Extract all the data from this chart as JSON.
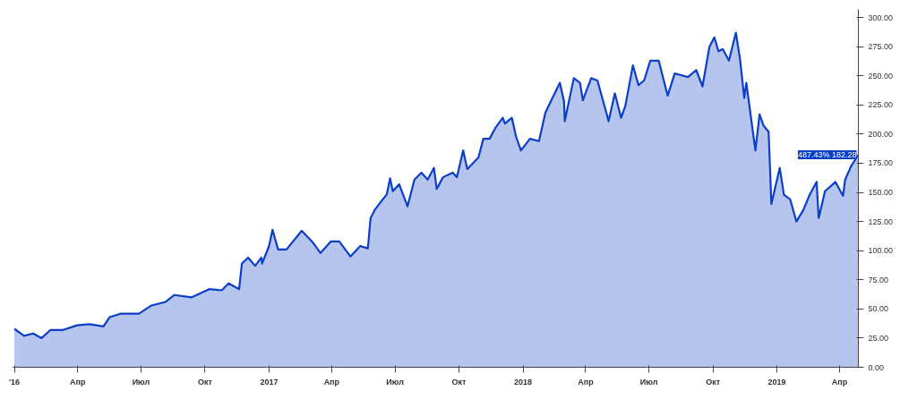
{
  "chart_data": {
    "type": "area",
    "x": [
      "2016-01-01",
      "2016-01-15",
      "2016-01-28",
      "2016-02-09",
      "2016-02-22",
      "2016-03-11",
      "2016-03-31",
      "2016-04-18",
      "2016-05-08",
      "2016-05-17",
      "2016-06-02",
      "2016-06-28",
      "2016-07-16",
      "2016-08-05",
      "2016-08-18",
      "2016-09-12",
      "2016-10-07",
      "2016-10-25",
      "2016-11-04",
      "2016-11-19",
      "2016-11-23",
      "2016-12-02",
      "2016-12-12",
      "2016-12-21",
      "2016-12-22",
      "2017-01-01",
      "2017-01-06",
      "2017-01-14",
      "2017-01-26",
      "2017-02-17",
      "2017-03-05",
      "2017-03-16",
      "2017-03-31",
      "2017-04-12",
      "2017-04-28",
      "2017-05-12",
      "2017-05-23",
      "2017-05-27",
      "2017-06-02",
      "2017-06-12",
      "2017-06-19",
      "2017-06-24",
      "2017-06-28",
      "2017-07-07",
      "2017-07-19",
      "2017-07-29",
      "2017-08-08",
      "2017-08-17",
      "2017-08-26",
      "2017-08-30",
      "2017-09-08",
      "2017-09-22",
      "2017-09-28",
      "2017-10-07",
      "2017-10-13",
      "2017-10-29",
      "2017-11-05",
      "2017-11-14",
      "2017-11-23",
      "2017-12-03",
      "2017-12-06",
      "2017-12-16",
      "2017-12-22",
      "2017-12-29",
      "2018-01-11",
      "2018-01-24",
      "2018-02-02",
      "2018-02-05",
      "2018-02-23",
      "2018-03-01",
      "2018-03-02",
      "2018-03-15",
      "2018-03-24",
      "2018-03-28",
      "2018-04-09",
      "2018-04-18",
      "2018-05-01",
      "2018-05-04",
      "2018-05-13",
      "2018-05-22",
      "2018-05-28",
      "2018-06-08",
      "2018-06-16",
      "2018-06-24",
      "2018-07-03",
      "2018-07-15",
      "2018-07-28",
      "2018-08-07",
      "2018-08-26",
      "2018-09-07",
      "2018-09-16",
      "2018-09-26",
      "2018-10-03",
      "2018-10-09",
      "2018-10-15",
      "2018-10-24",
      "2018-11-03",
      "2018-11-09",
      "2018-11-15",
      "2018-11-18",
      "2018-12-01",
      "2018-12-07",
      "2018-12-13",
      "2018-12-20",
      "2018-12-24",
      "2019-01-05",
      "2019-01-11",
      "2019-01-20",
      "2019-01-29",
      "2019-02-08",
      "2019-02-17",
      "2019-02-27",
      "2019-03-02",
      "2019-03-11",
      "2019-03-26",
      "2019-04-06",
      "2019-04-09",
      "2019-04-18",
      "2019-04-28"
    ],
    "series": [
      {
        "color": "#0b3fc8",
        "values": [
          33,
          27,
          29,
          25,
          32,
          32,
          36,
          37,
          35,
          43,
          46,
          46,
          53,
          56,
          62,
          60,
          67,
          66,
          72,
          67,
          89,
          94,
          87,
          94,
          89,
          104,
          118,
          101,
          101,
          117,
          107,
          98,
          108,
          108,
          95,
          104,
          102,
          128,
          135,
          143,
          148,
          162,
          151,
          157,
          138,
          161,
          167,
          161,
          171,
          153,
          163,
          167,
          163,
          186,
          170,
          180,
          196,
          196,
          206,
          214,
          209,
          214,
          198,
          186,
          196,
          194,
          218,
          222,
          244,
          228,
          211,
          248,
          244,
          229,
          248,
          246,
          218,
          211,
          235,
          214,
          224,
          259,
          242,
          246,
          263,
          263,
          233,
          252,
          249,
          255,
          241,
          275,
          283,
          271,
          273,
          263,
          287,
          264,
          231,
          244,
          186,
          217,
          207,
          202,
          140,
          171,
          148,
          144,
          125,
          135,
          148,
          159,
          128,
          151,
          159,
          147,
          161,
          173,
          182.28
        ]
      }
    ],
    "xlim": [
      "2015-12-30",
      "2019-04-28"
    ],
    "xticks": [
      {
        "value": "2016-01-01",
        "label": "'16"
      },
      {
        "value": "2016-04-01",
        "label": "Апр"
      },
      {
        "value": "2016-07-01",
        "label": "Июл"
      },
      {
        "value": "2016-10-01",
        "label": "Окт"
      },
      {
        "value": "2017-01-01",
        "label": "2017"
      },
      {
        "value": "2017-04-01",
        "label": "Апр"
      },
      {
        "value": "2017-07-01",
        "label": "Июл"
      },
      {
        "value": "2017-10-01",
        "label": "Окт"
      },
      {
        "value": "2018-01-01",
        "label": "2018"
      },
      {
        "value": "2018-04-01",
        "label": "Апр"
      },
      {
        "value": "2018-07-01",
        "label": "Июл"
      },
      {
        "value": "2018-10-01",
        "label": "Окт"
      },
      {
        "value": "2019-01-01",
        "label": "2019"
      },
      {
        "value": "2019-04-01",
        "label": "Апр"
      }
    ],
    "ylim": [
      0,
      307
    ],
    "yticks": [
      {
        "value": 0,
        "label": "0.00"
      },
      {
        "value": 25,
        "label": "25.00"
      },
      {
        "value": 50,
        "label": "50.00"
      },
      {
        "value": 75,
        "label": "75.00"
      },
      {
        "value": 100,
        "label": "100.00"
      },
      {
        "value": 125,
        "label": "125.00"
      },
      {
        "value": 150,
        "label": "150.00"
      },
      {
        "value": 175,
        "label": "175.00"
      },
      {
        "value": 200,
        "label": "200.00"
      },
      {
        "value": 225,
        "label": "225.00"
      },
      {
        "value": 250,
        "label": "250.00"
      },
      {
        "value": 275,
        "label": "275.00"
      },
      {
        "value": 300,
        "label": "300.00"
      }
    ],
    "annotations": [
      {
        "text": "487.43% 182.28",
        "x": "2019-04-28",
        "y": 182.28
      }
    ]
  }
}
